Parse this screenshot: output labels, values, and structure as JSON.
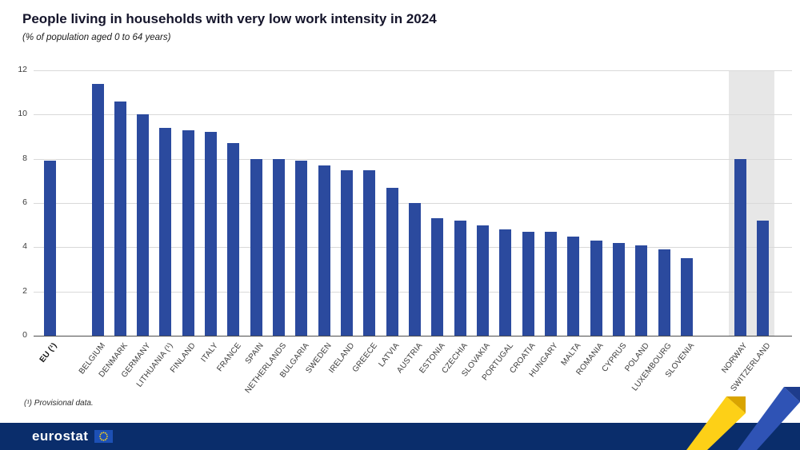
{
  "chart_data": {
    "type": "bar",
    "title": "People living in households with very low work intensity in 2024",
    "subtitle": "(% of population aged 0 to 64 years)",
    "xlabel": "",
    "ylabel": "",
    "ylim": [
      0,
      12
    ],
    "yticks": [
      0,
      2,
      4,
      6,
      8,
      10,
      12
    ],
    "grid": true,
    "legend": false,
    "groups": [
      {
        "name": "eu-aggregate",
        "bold": true,
        "categories": [
          "EU (¹)"
        ],
        "values": [
          7.9
        ]
      },
      {
        "name": "member-states",
        "categories": [
          "BELGIUM",
          "DENMARK",
          "GERMANY",
          "LITHUANIA (¹)",
          "FINLAND",
          "ITALY",
          "FRANCE",
          "SPAIN",
          "NETHERLANDS",
          "BULGARIA",
          "SWEDEN",
          "IRELAND",
          "GREECE",
          "LATVIA",
          "AUSTRIA",
          "ESTONIA",
          "CZECHIA",
          "SLOVAKIA",
          "PORTUGAL",
          "CROATIA",
          "HUNGARY",
          "MALTA",
          "ROMANIA",
          "CYPRUS",
          "POLAND",
          "LUXEMBOURG",
          "SLOVENIA"
        ],
        "values": [
          11.4,
          10.6,
          10.0,
          9.4,
          9.3,
          9.2,
          8.7,
          8.0,
          8.0,
          7.9,
          7.7,
          7.5,
          7.5,
          6.7,
          6.0,
          5.3,
          5.2,
          5.0,
          4.8,
          4.7,
          4.7,
          4.5,
          4.3,
          4.2,
          4.1,
          3.9,
          3.5
        ]
      },
      {
        "name": "non-eu",
        "shaded": true,
        "categories": [
          "NORWAY",
          "SWITZERLAND"
        ],
        "values": [
          8.0,
          5.2
        ]
      }
    ]
  },
  "footnote": "(¹) Provisional data.",
  "footer": {
    "brand": "eurostat"
  },
  "icons": {
    "footer_flag": "eu-flag-icon",
    "corner_decoration": "ribbon-decoration"
  },
  "colors": {
    "bar": "#2b4a9e",
    "highlight_bg": "#e7e7e7",
    "grid": "#d9d9d9",
    "axis": "#4d4d4d",
    "footer_bg": "#0a2d6b",
    "ribbon_yellow": "#fdd017",
    "ribbon_yellow_dark": "#d9a400",
    "ribbon_blue": "#2f53b5",
    "ribbon_blue_dark": "#1e3c8c",
    "flag_blue": "#1d50b5",
    "flag_stars": "#ffd617"
  }
}
